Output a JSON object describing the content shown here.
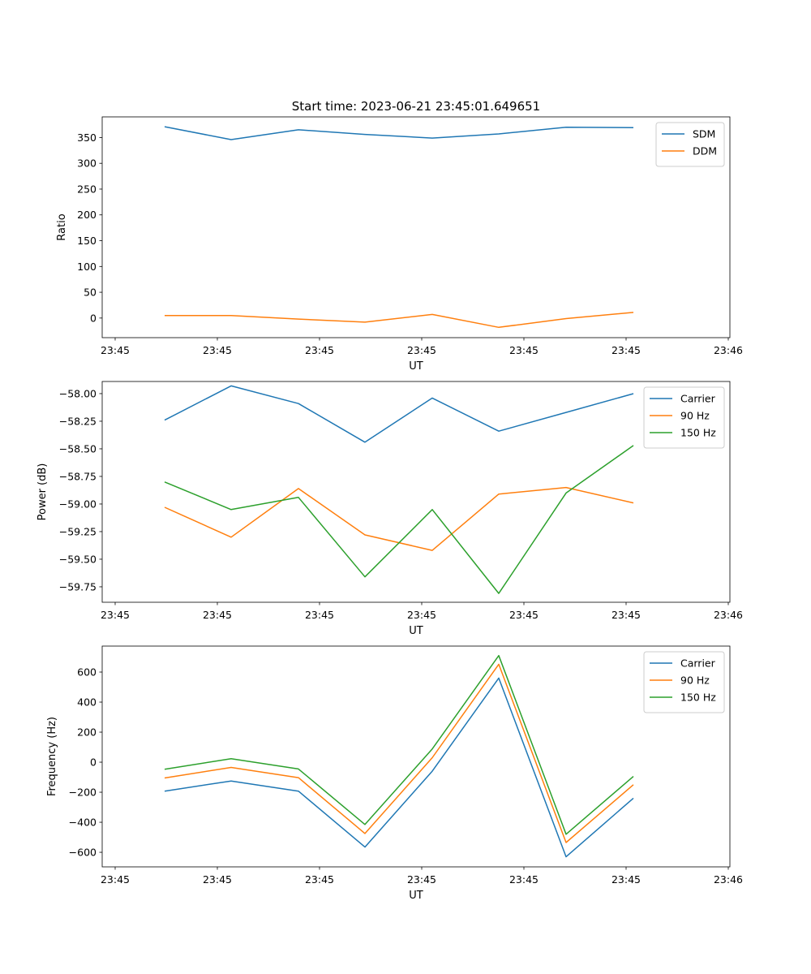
{
  "figure_title": "Start time: 2023-06-21 23:45:01.649651",
  "colors": {
    "blue": "#1f77b4",
    "orange": "#ff7f0e",
    "green": "#2ca02c"
  },
  "x_tick_labels": [
    "23:45",
    "23:45",
    "23:45",
    "23:45",
    "23:45",
    "23:45",
    "23:46"
  ],
  "chart_data": [
    {
      "type": "line",
      "xlabel": "UT",
      "ylabel": "Ratio",
      "ylim": [
        -38,
        390
      ],
      "yticks": [
        0,
        50,
        100,
        150,
        200,
        250,
        300,
        350
      ],
      "ytick_labels": [
        "0",
        "50",
        "100",
        "150",
        "200",
        "250",
        "300",
        "350"
      ],
      "legend_position": "top-right",
      "x": [
        1,
        2,
        3,
        4,
        5,
        6,
        7,
        8
      ],
      "series": [
        {
          "name": "SDM",
          "color": "#1f77b4",
          "values": [
            371,
            346,
            365,
            356,
            349,
            357,
            370,
            369
          ]
        },
        {
          "name": "DDM",
          "color": "#ff7f0e",
          "values": [
            5,
            5,
            -2,
            -8,
            7,
            -18,
            -1,
            11
          ]
        }
      ]
    },
    {
      "type": "line",
      "xlabel": "UT",
      "ylabel": "Power (dB)",
      "ylim": [
        -59.89,
        -57.89
      ],
      "yticks": [
        -59.75,
        -59.5,
        -59.25,
        -59.0,
        -58.75,
        -58.5,
        -58.25,
        -58.0
      ],
      "ytick_labels": [
        "−59.75",
        "−59.50",
        "−59.25",
        "−59.00",
        "−58.75",
        "−58.50",
        "−58.25",
        "−58.00"
      ],
      "legend_position": "top-right",
      "x": [
        1,
        2,
        3,
        4,
        5,
        6,
        7,
        8
      ],
      "series": [
        {
          "name": "Carrier",
          "color": "#1f77b4",
          "values": [
            -58.24,
            -57.93,
            -58.09,
            -58.44,
            -58.04,
            -58.34,
            -58.17,
            -58.0
          ]
        },
        {
          "name": "90 Hz",
          "color": "#ff7f0e",
          "values": [
            -59.03,
            -59.3,
            -58.86,
            -59.28,
            -59.42,
            -58.91,
            -58.85,
            -58.99
          ]
        },
        {
          "name": "150 Hz",
          "color": "#2ca02c",
          "values": [
            -58.8,
            -59.05,
            -58.94,
            -59.66,
            -59.05,
            -59.81,
            -58.9,
            -58.47
          ]
        }
      ]
    },
    {
      "type": "line",
      "xlabel": "UT",
      "ylabel": "Frequency (Hz)",
      "ylim": [
        -697,
        773
      ],
      "yticks": [
        -600,
        -400,
        -200,
        0,
        200,
        400,
        600
      ],
      "ytick_labels": [
        "−600",
        "−400",
        "−200",
        "0",
        "200",
        "400",
        "600"
      ],
      "legend_position": "top-right",
      "x": [
        1,
        2,
        3,
        4,
        5,
        6,
        7,
        8
      ],
      "series": [
        {
          "name": "Carrier",
          "color": "#1f77b4",
          "values": [
            -193,
            -125,
            -193,
            -565,
            -60,
            560,
            -630,
            -240
          ]
        },
        {
          "name": "90 Hz",
          "color": "#ff7f0e",
          "values": [
            -105,
            -35,
            -103,
            -475,
            30,
            652,
            -535,
            -150
          ]
        },
        {
          "name": "150 Hz",
          "color": "#2ca02c",
          "values": [
            -47,
            23,
            -45,
            -415,
            88,
            710,
            -480,
            -95
          ]
        }
      ]
    }
  ]
}
